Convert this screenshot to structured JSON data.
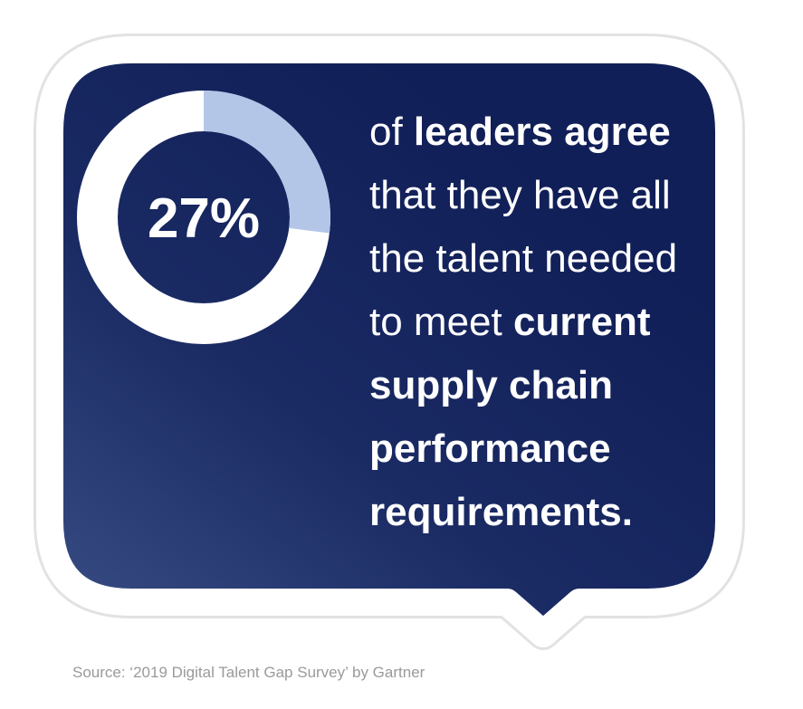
{
  "chart_data": {
    "type": "donut",
    "values": [
      27
    ],
    "value_labels": [
      "27%"
    ],
    "color": "#b3c6e8"
  },
  "statement": {
    "lines": [
      [
        {
          "text": "of ",
          "bold": false
        },
        {
          "text": "leaders agree",
          "bold": true
        }
      ],
      [
        {
          "text": "that they have all",
          "bold": false
        }
      ],
      [
        {
          "text": "the talent needed",
          "bold": false
        }
      ],
      [
        {
          "text": "to meet ",
          "bold": false
        },
        {
          "text": "current",
          "bold": true
        }
      ],
      [
        {
          "text": "supply chain",
          "bold": true
        }
      ],
      [
        {
          "text": "performance",
          "bold": true
        }
      ],
      [
        {
          "text": "requirements.",
          "bold": true
        }
      ]
    ]
  },
  "source": "Source: ‘2019 Digital Talent Gap Survey’ by Gartner"
}
